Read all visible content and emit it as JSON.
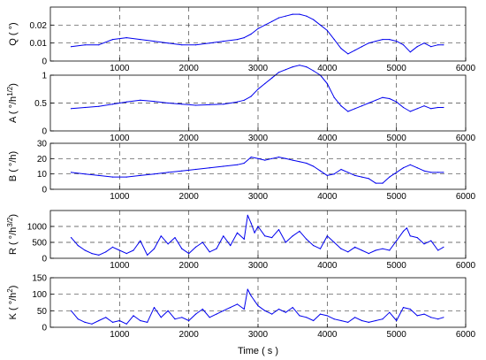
{
  "chart_data": [
    {
      "type": "line",
      "ylabel": "Q ( °)",
      "xlim": [
        0,
        6000
      ],
      "ylim": [
        0,
        0.03
      ],
      "yticks": [
        "0",
        "0.01",
        "0.02"
      ],
      "ytick_values": [
        0,
        0.01,
        0.02
      ],
      "grid": "dashed",
      "x": [
        300,
        500,
        700,
        900,
        1100,
        1300,
        1500,
        1700,
        1900,
        2100,
        2300,
        2500,
        2700,
        2800,
        2900,
        3000,
        3100,
        3200,
        3300,
        3400,
        3500,
        3600,
        3700,
        3800,
        3900,
        4000,
        4100,
        4200,
        4300,
        4400,
        4500,
        4600,
        4700,
        4800,
        4900,
        5000,
        5100,
        5200,
        5300,
        5400,
        5500,
        5600,
        5680
      ],
      "series": [
        {
          "values": [
            0.008,
            0.009,
            0.009,
            0.012,
            0.013,
            0.012,
            0.011,
            0.01,
            0.009,
            0.009,
            0.01,
            0.011,
            0.012,
            0.013,
            0.015,
            0.018,
            0.02,
            0.022,
            0.024,
            0.025,
            0.026,
            0.026,
            0.025,
            0.023,
            0.02,
            0.017,
            0.012,
            0.007,
            0.004,
            0.006,
            0.008,
            0.01,
            0.011,
            0.012,
            0.012,
            0.011,
            0.009,
            0.005,
            0.008,
            0.01,
            0.008,
            0.009,
            0.009
          ]
        }
      ]
    },
    {
      "type": "line",
      "ylabel": "A ( °/h^1/2)",
      "xlim": [
        0,
        6000
      ],
      "ylim": [
        0,
        1
      ],
      "yticks": [
        "0",
        "0.5",
        "1"
      ],
      "ytick_values": [
        0,
        0.5,
        1
      ],
      "grid": "dashed",
      "x": [
        300,
        500,
        700,
        900,
        1100,
        1300,
        1500,
        1700,
        1900,
        2100,
        2300,
        2500,
        2700,
        2800,
        2900,
        3000,
        3100,
        3200,
        3300,
        3400,
        3500,
        3600,
        3700,
        3800,
        3900,
        4000,
        4100,
        4200,
        4300,
        4400,
        4500,
        4600,
        4700,
        4800,
        4900,
        5000,
        5100,
        5200,
        5300,
        5400,
        5500,
        5600,
        5680
      ],
      "series": [
        {
          "values": [
            0.4,
            0.42,
            0.44,
            0.48,
            0.52,
            0.55,
            0.53,
            0.5,
            0.48,
            0.46,
            0.47,
            0.48,
            0.52,
            0.55,
            0.62,
            0.75,
            0.85,
            0.95,
            1.05,
            1.1,
            1.15,
            1.18,
            1.15,
            1.08,
            1.0,
            0.85,
            0.6,
            0.45,
            0.35,
            0.4,
            0.45,
            0.5,
            0.55,
            0.6,
            0.58,
            0.52,
            0.42,
            0.35,
            0.4,
            0.45,
            0.4,
            0.42,
            0.42
          ]
        }
      ]
    },
    {
      "type": "line",
      "ylabel": "B ( °/h)",
      "xlim": [
        0,
        6000
      ],
      "ylim": [
        0,
        30
      ],
      "yticks": [
        "0",
        "10",
        "20",
        "30"
      ],
      "ytick_values": [
        0,
        10,
        20,
        30
      ],
      "grid": "dashed",
      "x": [
        300,
        500,
        700,
        900,
        1100,
        1300,
        1500,
        1700,
        1900,
        2100,
        2300,
        2500,
        2700,
        2800,
        2900,
        3000,
        3100,
        3200,
        3300,
        3400,
        3500,
        3600,
        3700,
        3800,
        3900,
        4000,
        4100,
        4200,
        4300,
        4400,
        4500,
        4600,
        4700,
        4800,
        4900,
        5000,
        5100,
        5200,
        5300,
        5400,
        5500,
        5600,
        5680
      ],
      "series": [
        {
          "values": [
            11,
            10,
            9,
            8,
            8,
            9,
            10,
            11,
            12,
            13,
            14,
            15,
            16,
            17,
            21,
            20,
            19,
            20,
            21,
            20,
            19,
            18,
            17,
            15,
            12,
            9,
            10,
            13,
            11,
            9,
            8,
            7,
            4,
            4,
            8,
            11,
            14,
            16,
            14,
            12,
            11,
            11,
            11
          ]
        }
      ]
    },
    {
      "type": "line",
      "ylabel": "R ( °/h^3/2)",
      "xlim": [
        0,
        6000
      ],
      "ylim": [
        0,
        1500
      ],
      "yticks": [
        "0",
        "500",
        "1000"
      ],
      "ytick_values": [
        0,
        500,
        1000
      ],
      "grid": "dashed",
      "x": [
        300,
        400,
        500,
        600,
        700,
        800,
        900,
        1000,
        1100,
        1200,
        1300,
        1400,
        1500,
        1600,
        1700,
        1800,
        1900,
        2000,
        2100,
        2200,
        2300,
        2400,
        2500,
        2600,
        2700,
        2800,
        2850,
        2900,
        2950,
        3000,
        3100,
        3200,
        3300,
        3400,
        3500,
        3600,
        3700,
        3800,
        3900,
        4000,
        4100,
        4200,
        4300,
        4400,
        4500,
        4600,
        4700,
        4800,
        4900,
        5000,
        5100,
        5150,
        5200,
        5300,
        5400,
        5500,
        5600,
        5680
      ],
      "series": [
        {
          "values": [
            650,
            400,
            250,
            150,
            100,
            200,
            350,
            250,
            150,
            250,
            550,
            100,
            300,
            700,
            450,
            650,
            300,
            150,
            350,
            500,
            200,
            300,
            700,
            400,
            800,
            600,
            1350,
            1100,
            800,
            1000,
            700,
            650,
            900,
            500,
            700,
            850,
            600,
            400,
            300,
            700,
            500,
            300,
            200,
            350,
            250,
            150,
            250,
            300,
            250,
            550,
            850,
            950,
            700,
            650,
            450,
            550,
            250,
            350
          ]
        }
      ]
    },
    {
      "type": "line",
      "ylabel": "K ( °/h^2)",
      "xlim": [
        0,
        6000
      ],
      "ylim": [
        0,
        150
      ],
      "yticks": [
        "0",
        "50",
        "100",
        "150"
      ],
      "ytick_values": [
        0,
        50,
        100,
        150
      ],
      "grid": "dashed",
      "x": [
        300,
        400,
        500,
        600,
        700,
        800,
        900,
        1000,
        1100,
        1200,
        1300,
        1400,
        1500,
        1600,
        1700,
        1800,
        1900,
        2000,
        2100,
        2200,
        2300,
        2400,
        2500,
        2600,
        2700,
        2800,
        2850,
        2900,
        2950,
        3000,
        3100,
        3200,
        3300,
        3400,
        3500,
        3600,
        3700,
        3800,
        3900,
        4000,
        4100,
        4200,
        4300,
        4400,
        4500,
        4600,
        4700,
        4800,
        4900,
        5000,
        5100,
        5200,
        5300,
        5400,
        5500,
        5600,
        5680
      ],
      "series": [
        {
          "values": [
            50,
            25,
            15,
            10,
            20,
            30,
            15,
            20,
            10,
            35,
            20,
            15,
            60,
            30,
            50,
            25,
            30,
            20,
            40,
            55,
            30,
            40,
            50,
            60,
            70,
            55,
            115,
            95,
            80,
            65,
            50,
            40,
            55,
            45,
            60,
            35,
            30,
            20,
            40,
            35,
            25,
            20,
            15,
            30,
            20,
            15,
            20,
            25,
            45,
            20,
            60,
            55,
            35,
            40,
            30,
            25,
            30
          ]
        }
      ]
    }
  ],
  "shared": {
    "xticks": [
      "1000",
      "2000",
      "3000",
      "4000",
      "5000",
      "6000"
    ],
    "xtick_values": [
      1000,
      2000,
      3000,
      4000,
      5000,
      6000
    ],
    "xlabel": "Time ( s )",
    "line_color": "#0000ee"
  }
}
